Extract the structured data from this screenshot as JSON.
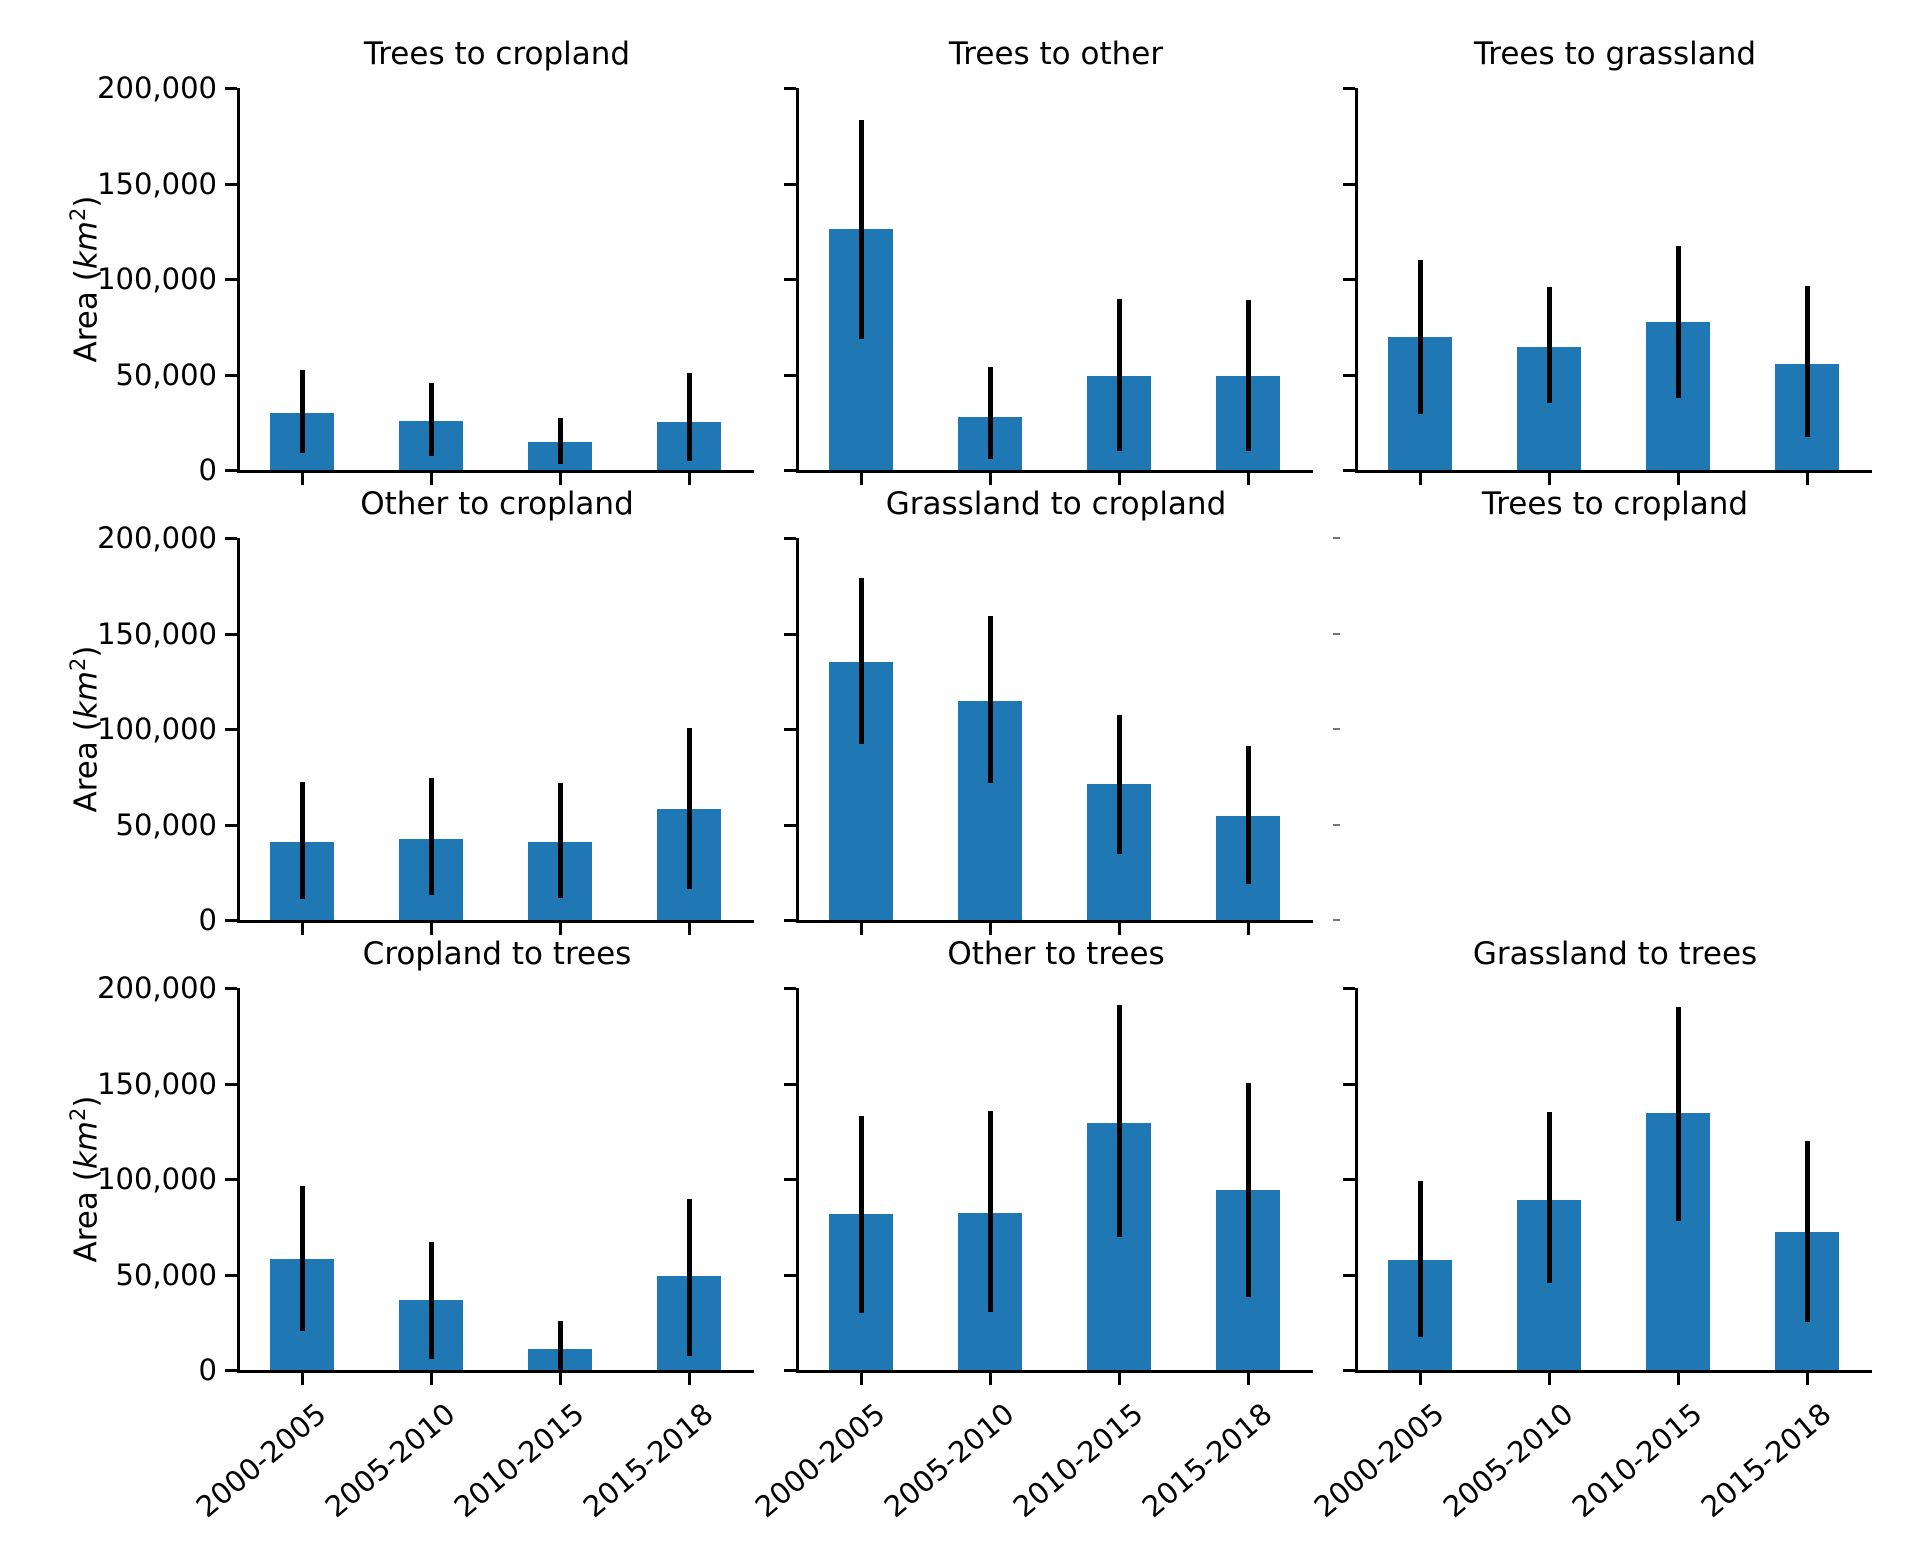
{
  "figure": {
    "bar_color": "#1f77b4",
    "error_color": "#000000",
    "background_color": "#ffffff",
    "ylabel": {
      "prefix": "Area (",
      "unit": "km",
      "sup": "2",
      "suffix": ")"
    },
    "y_axis": {
      "min": 0,
      "max": 200000,
      "ticks": [
        {
          "value": 0,
          "label": "0"
        },
        {
          "value": 50000,
          "label": "50,000"
        },
        {
          "value": 100000,
          "label": "100,000"
        },
        {
          "value": 150000,
          "label": "150,000"
        },
        {
          "value": 200000,
          "label": "200,000"
        }
      ]
    },
    "categories": [
      "2000-2005",
      "2005-2010",
      "2010-2015",
      "2015-2018"
    ]
  },
  "chart_data": [
    {
      "type": "bar",
      "title": "Trees to cropland",
      "row": 0,
      "col": 0,
      "categories": [
        "2000-2005",
        "2005-2010",
        "2010-2015",
        "2015-2018"
      ],
      "values": [
        30000,
        25500,
        14500,
        25000
      ],
      "err_low": [
        9000,
        7500,
        3000,
        4500
      ],
      "err_high": [
        52500,
        45500,
        27000,
        51000
      ],
      "ylim": [
        0,
        200000
      ],
      "grid": false
    },
    {
      "type": "bar",
      "title": "Trees to other",
      "row": 0,
      "col": 1,
      "categories": [
        "2000-2005",
        "2005-2010",
        "2010-2015",
        "2015-2018"
      ],
      "values": [
        126000,
        28000,
        49000,
        49000
      ],
      "err_low": [
        68500,
        5500,
        10000,
        10000
      ],
      "err_high": [
        183000,
        54000,
        89500,
        89000
      ],
      "ylim": [
        0,
        200000
      ],
      "grid": false
    },
    {
      "type": "bar",
      "title": "Trees to grassland",
      "row": 0,
      "col": 2,
      "categories": [
        "2000-2005",
        "2005-2010",
        "2010-2015",
        "2015-2018"
      ],
      "values": [
        69500,
        64500,
        77500,
        55500
      ],
      "err_low": [
        29500,
        35000,
        37500,
        17500
      ],
      "err_high": [
        110000,
        96000,
        117500,
        96500
      ],
      "ylim": [
        0,
        200000
      ],
      "grid": false
    },
    {
      "type": "bar",
      "title": "Other to cropland",
      "row": 1,
      "col": 0,
      "categories": [
        "2000-2005",
        "2005-2010",
        "2010-2015",
        "2015-2018"
      ],
      "values": [
        41000,
        42500,
        41000,
        58000
      ],
      "err_low": [
        11000,
        13000,
        11500,
        16000
      ],
      "err_high": [
        72500,
        74500,
        71500,
        100500
      ],
      "ylim": [
        0,
        200000
      ],
      "grid": false
    },
    {
      "type": "bar",
      "title": "Grassland to cropland",
      "row": 1,
      "col": 1,
      "categories": [
        "2000-2005",
        "2005-2010",
        "2010-2015",
        "2015-2018"
      ],
      "values": [
        135000,
        114500,
        71000,
        54500
      ],
      "err_low": [
        92000,
        71500,
        34500,
        19000
      ],
      "err_high": [
        179000,
        159000,
        107500,
        91000
      ],
      "ylim": [
        0,
        200000
      ],
      "grid": false
    },
    {
      "type": "bar",
      "title": "Trees to cropland",
      "row": 1,
      "col": 2,
      "empty": true,
      "values": [],
      "ylim": [
        0,
        200000
      ],
      "grid": false
    },
    {
      "type": "bar",
      "title": "Cropland to trees",
      "row": 2,
      "col": 0,
      "categories": [
        "2000-2005",
        "2005-2010",
        "2010-2015",
        "2015-2018"
      ],
      "values": [
        58000,
        36500,
        11000,
        49000
      ],
      "err_low": [
        20500,
        5500,
        -1500,
        7500
      ],
      "err_high": [
        96500,
        67000,
        25500,
        89500
      ],
      "ylim": [
        0,
        200000
      ],
      "grid": false
    },
    {
      "type": "bar",
      "title": "Other to trees",
      "row": 2,
      "col": 1,
      "categories": [
        "2000-2005",
        "2005-2010",
        "2010-2015",
        "2015-2018"
      ],
      "values": [
        81500,
        82000,
        129500,
        94000
      ],
      "err_low": [
        30000,
        30500,
        69500,
        38000
      ],
      "err_high": [
        133000,
        135500,
        191000,
        150500
      ],
      "ylim": [
        0,
        200000
      ],
      "grid": false
    },
    {
      "type": "bar",
      "title": "Grassland to trees",
      "row": 2,
      "col": 2,
      "categories": [
        "2000-2005",
        "2005-2010",
        "2010-2015",
        "2015-2018"
      ],
      "values": [
        57500,
        89000,
        134500,
        72000
      ],
      "err_low": [
        17500,
        45500,
        78000,
        25000
      ],
      "err_high": [
        99000,
        135000,
        190000,
        120000
      ],
      "ylim": [
        0,
        200000
      ],
      "grid": false
    }
  ]
}
